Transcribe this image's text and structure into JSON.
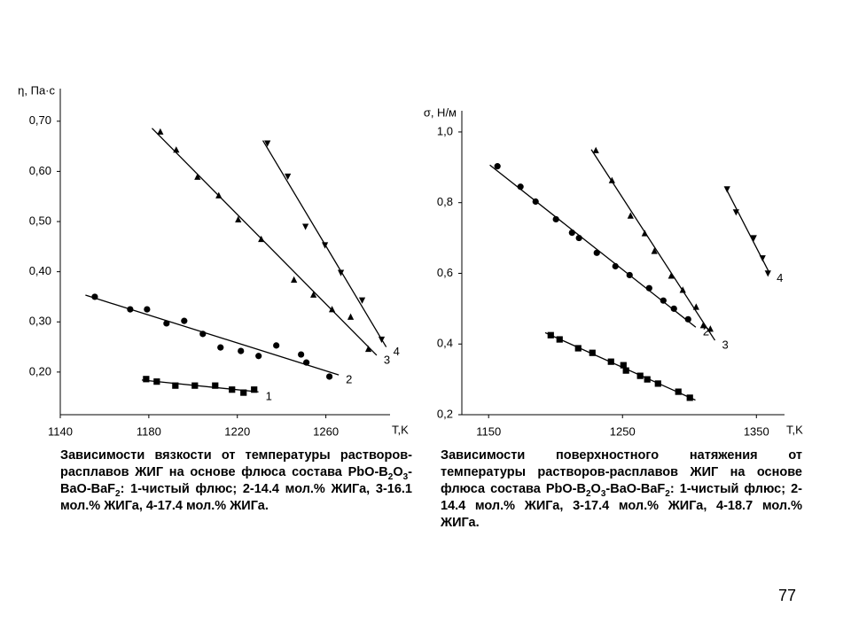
{
  "page_number": "77",
  "chart_data": [
    {
      "type": "scatter",
      "ylabel": "η, Па·с",
      "xlabel": "T,K",
      "xlim": [
        1140,
        1289
      ],
      "ylim": [
        0.115,
        0.765
      ],
      "xticks": [
        1140,
        1180,
        1220,
        1260
      ],
      "yticks": [
        {
          "value": 0.2,
          "label": "0,20"
        },
        {
          "value": 0.3,
          "label": "0,30"
        },
        {
          "value": 0.4,
          "label": "0,40"
        },
        {
          "value": 0.5,
          "label": "0,50"
        },
        {
          "value": 0.6,
          "label": "0,60"
        },
        {
          "value": 0.7,
          "label": "0,70"
        }
      ],
      "series": [
        {
          "name": "1",
          "marker": "square",
          "color": "#000000",
          "x": [
            1178.8,
            1183.6,
            1192,
            1200.8,
            1210,
            1217.6,
            1222.8,
            1227.6
          ],
          "values": [
            0.186,
            0.181,
            0.173,
            0.173,
            0.173,
            0.165,
            0.159,
            0.165
          ]
        },
        {
          "name": "2",
          "marker": "circle",
          "color": "#000000",
          "x": [
            1155.6,
            1171.6,
            1179.2,
            1188,
            1196,
            1204.4,
            1212.4,
            1221.6,
            1229.6,
            1237.6,
            1248.8,
            1251.2,
            1261.6
          ],
          "values": [
            0.35,
            0.325,
            0.325,
            0.297,
            0.302,
            0.276,
            0.249,
            0.242,
            0.232,
            0.253,
            0.235,
            0.219,
            0.191
          ]
        },
        {
          "name": "3",
          "marker": "triangle-up",
          "color": "#000000",
          "x": [
            1185.2,
            1192.4,
            1202,
            1211.6,
            1220.4,
            1230.8,
            1245.6,
            1254.4,
            1262.8,
            1271.2,
            1279.2
          ],
          "values": [
            0.679,
            0.643,
            0.589,
            0.552,
            0.504,
            0.465,
            0.384,
            0.354,
            0.325,
            0.31,
            0.246
          ]
        },
        {
          "name": "4",
          "marker": "triangle-down",
          "color": "#000000",
          "x": [
            1233.6,
            1242.8,
            1250.8,
            1259.6,
            1266.8,
            1276.4,
            1285.2
          ],
          "values": [
            0.656,
            0.59,
            0.49,
            0.453,
            0.398,
            0.343,
            0.265
          ]
        }
      ],
      "caption": [
        {
          "t": "Зависимости вязкости от температуры растворов-расплавов ЖИГ на основе флюса состава PbO-B"
        },
        {
          "t": "2",
          "sub": true
        },
        {
          "t": "O"
        },
        {
          "t": "3",
          "sub": true
        },
        {
          "t": "-BaO-BaF"
        },
        {
          "t": "2",
          "sub": true
        },
        {
          "t": ": 1-чистый флюс; 2-14.4 мол.% ЖИГа, 3-16.1 мол.% ЖИГа, 4-17.4 мол.% ЖИГа."
        }
      ]
    },
    {
      "type": "scatter",
      "ylabel": "σ, Н/м",
      "xlabel": "T,K",
      "xlim": [
        1130,
        1371
      ],
      "ylim": [
        0.2,
        1.06
      ],
      "xticks": [
        1150,
        1250,
        1350
      ],
      "yticks": [
        {
          "value": 0.2,
          "label": "0,2"
        },
        {
          "value": 0.4,
          "label": "0,4"
        },
        {
          "value": 0.6,
          "label": "0,6"
        },
        {
          "value": 0.8,
          "label": "0,8"
        },
        {
          "value": 1.0,
          "label": "1,0"
        }
      ],
      "series": [
        {
          "marker": "square",
          "color": "#000000",
          "x": [
            1196.4,
            1203,
            1216.9,
            1227.5,
            1241.4,
            1250.7,
            1252.6,
            1263.2,
            1268.5,
            1276.5,
            1291.7,
            1300.3
          ],
          "values": [
            0.425,
            0.413,
            0.388,
            0.375,
            0.35,
            0.34,
            0.325,
            0.31,
            0.3,
            0.288,
            0.265,
            0.248
          ]
        },
        {
          "name": "2",
          "marker": "circle",
          "color": "#000000",
          "x": [
            1156.6,
            1173.8,
            1185.1,
            1200.3,
            1212.3,
            1217.5,
            1230.8,
            1244.7,
            1255.3,
            1269.9,
            1280.5,
            1288.4,
            1299
          ],
          "values": [
            0.903,
            0.845,
            0.803,
            0.753,
            0.715,
            0.7,
            0.658,
            0.62,
            0.595,
            0.558,
            0.523,
            0.5,
            0.47
          ]
        },
        {
          "name": "3",
          "marker": "triangle-up",
          "color": "#000000",
          "x": [
            1230.1,
            1242.1,
            1256,
            1266.6,
            1273.8,
            1286.4,
            1295,
            1305,
            1310.3,
            1315.6
          ],
          "values": [
            0.948,
            0.863,
            0.763,
            0.713,
            0.663,
            0.593,
            0.553,
            0.505,
            0.453,
            0.443
          ]
        },
        {
          "name": "4",
          "marker": "triangle-down",
          "color": "#000000",
          "x": [
            1328.1,
            1334.8,
            1348,
            1354.6,
            1358.6
          ],
          "values": [
            0.838,
            0.773,
            0.7,
            0.643,
            0.6
          ]
        }
      ],
      "caption": [
        {
          "t": "Зависимости поверхностного натяжения от температуры растворов-расплавов ЖИГ на основе флюса состава PbO-B"
        },
        {
          "t": "2",
          "sub": true
        },
        {
          "t": "O"
        },
        {
          "t": "3",
          "sub": true
        },
        {
          "t": "-BaO-BaF"
        },
        {
          "t": "2",
          "sub": true
        },
        {
          "t": ": 1-чистый флюс; 2-14.4 мол.% ЖИГа, 3-17.4 мол.% ЖИГа, 4-18.7 мол.% ЖИГа."
        }
      ]
    }
  ]
}
